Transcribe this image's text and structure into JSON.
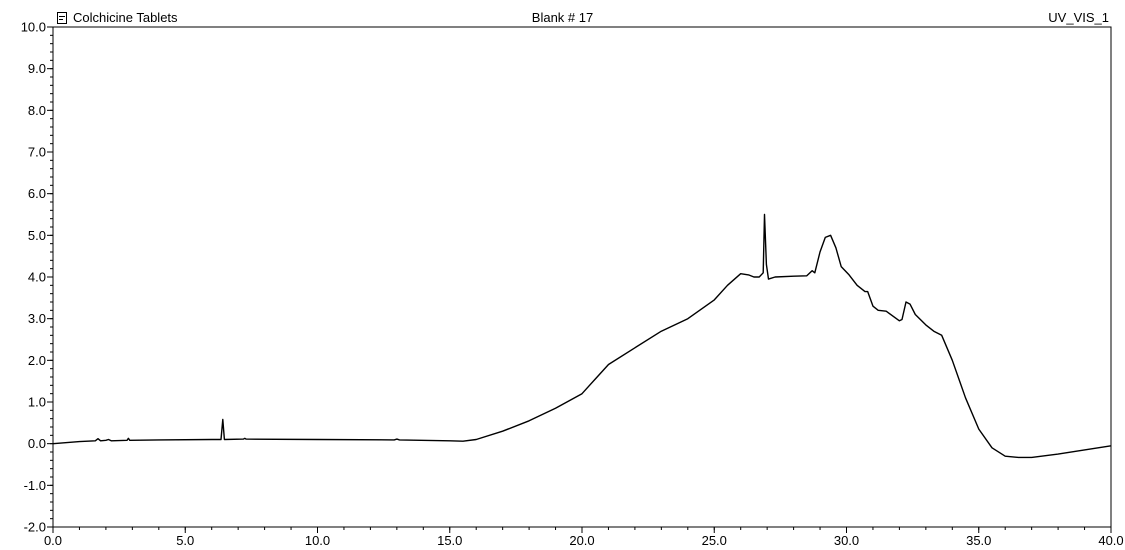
{
  "header": {
    "sample_name": "Colchicine Tablets",
    "injection": "Blank # 17",
    "channel": "UV_VIS_1"
  },
  "chart_data": {
    "type": "line",
    "xlim": [
      0.0,
      40.0
    ],
    "ylim": [
      -2.0,
      10.0
    ],
    "x_ticks": [
      "0.0",
      "5.0",
      "10.0",
      "15.0",
      "20.0",
      "25.0",
      "30.0",
      "35.0",
      "40.0"
    ],
    "y_ticks": [
      "10.0",
      "9.0",
      "8.0",
      "7.0",
      "6.0",
      "5.0",
      "4.0",
      "3.0",
      "2.0",
      "1.0",
      "0.0",
      "-1.0",
      "-2.0"
    ],
    "grid": false,
    "series": [
      {
        "color": "#000000",
        "points": [
          [
            0.0,
            0.0
          ],
          [
            1.0,
            0.05
          ],
          [
            1.6,
            0.07
          ],
          [
            1.7,
            0.12
          ],
          [
            1.8,
            0.07
          ],
          [
            2.0,
            0.08
          ],
          [
            2.1,
            0.1
          ],
          [
            2.2,
            0.07
          ],
          [
            2.8,
            0.08
          ],
          [
            2.85,
            0.13
          ],
          [
            2.9,
            0.08
          ],
          [
            4.0,
            0.09
          ],
          [
            6.0,
            0.1
          ],
          [
            6.35,
            0.1
          ],
          [
            6.42,
            0.58
          ],
          [
            6.48,
            0.1
          ],
          [
            7.2,
            0.11
          ],
          [
            7.25,
            0.13
          ],
          [
            7.3,
            0.11
          ],
          [
            10.0,
            0.1
          ],
          [
            12.9,
            0.09
          ],
          [
            13.0,
            0.11
          ],
          [
            13.1,
            0.09
          ],
          [
            15.0,
            0.07
          ],
          [
            15.5,
            0.06
          ],
          [
            16.0,
            0.1
          ],
          [
            17.0,
            0.3
          ],
          [
            18.0,
            0.55
          ],
          [
            19.0,
            0.85
          ],
          [
            20.0,
            1.2
          ],
          [
            20.5,
            1.55
          ],
          [
            21.0,
            1.9
          ],
          [
            22.0,
            2.3
          ],
          [
            23.0,
            2.7
          ],
          [
            24.0,
            3.0
          ],
          [
            25.0,
            3.45
          ],
          [
            25.5,
            3.8
          ],
          [
            26.0,
            4.08
          ],
          [
            26.3,
            4.05
          ],
          [
            26.5,
            4.0
          ],
          [
            26.7,
            4.0
          ],
          [
            26.85,
            4.1
          ],
          [
            26.9,
            5.5
          ],
          [
            26.97,
            4.3
          ],
          [
            27.05,
            3.95
          ],
          [
            27.3,
            4.0
          ],
          [
            28.0,
            4.02
          ],
          [
            28.5,
            4.03
          ],
          [
            28.7,
            4.15
          ],
          [
            28.8,
            4.1
          ],
          [
            29.0,
            4.6
          ],
          [
            29.2,
            4.95
          ],
          [
            29.4,
            5.0
          ],
          [
            29.6,
            4.7
          ],
          [
            29.8,
            4.25
          ],
          [
            30.1,
            4.05
          ],
          [
            30.4,
            3.8
          ],
          [
            30.7,
            3.65
          ],
          [
            30.8,
            3.65
          ],
          [
            31.0,
            3.3
          ],
          [
            31.2,
            3.2
          ],
          [
            31.5,
            3.18
          ],
          [
            32.0,
            2.95
          ],
          [
            32.1,
            2.98
          ],
          [
            32.25,
            3.4
          ],
          [
            32.4,
            3.35
          ],
          [
            32.6,
            3.1
          ],
          [
            33.0,
            2.85
          ],
          [
            33.3,
            2.7
          ],
          [
            33.6,
            2.6
          ],
          [
            34.0,
            2.0
          ],
          [
            34.5,
            1.1
          ],
          [
            35.0,
            0.35
          ],
          [
            35.5,
            -0.1
          ],
          [
            36.0,
            -0.3
          ],
          [
            36.5,
            -0.33
          ],
          [
            37.0,
            -0.33
          ],
          [
            38.0,
            -0.25
          ],
          [
            39.0,
            -0.15
          ],
          [
            40.0,
            -0.05
          ]
        ]
      }
    ]
  }
}
